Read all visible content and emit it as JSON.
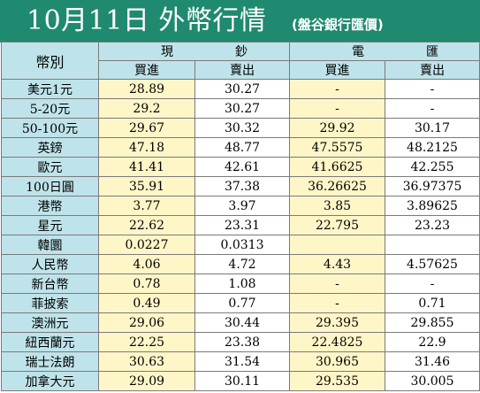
{
  "header": {
    "title": "10月11日 外幣行情",
    "source": "(盤谷銀行匯價)"
  },
  "table": {
    "corner_label": "幣別",
    "groups": [
      "現鈔",
      "電匯"
    ],
    "subheaders": [
      "買進",
      "賣出",
      "買進",
      "賣出"
    ],
    "rows": [
      {
        "currency": "美元1元",
        "cash_buy": "28.89",
        "cash_sell": "30.27",
        "tt_buy": "-",
        "tt_sell": "-"
      },
      {
        "currency": "5-20元",
        "cash_buy": "29.2",
        "cash_sell": "30.27",
        "tt_buy": "-",
        "tt_sell": "-"
      },
      {
        "currency": "50-100元",
        "cash_buy": "29.67",
        "cash_sell": "30.32",
        "tt_buy": "29.92",
        "tt_sell": "30.17"
      },
      {
        "currency": "英鎊",
        "cash_buy": "47.18",
        "cash_sell": "48.77",
        "tt_buy": "47.5575",
        "tt_sell": "48.2125"
      },
      {
        "currency": "歐元",
        "cash_buy": "41.41",
        "cash_sell": "42.61",
        "tt_buy": "41.6625",
        "tt_sell": "42.255"
      },
      {
        "currency": "100日圓",
        "cash_buy": "35.91",
        "cash_sell": "37.38",
        "tt_buy": "36.26625",
        "tt_sell": "36.97375"
      },
      {
        "currency": "港幣",
        "cash_buy": "3.77",
        "cash_sell": "3.97",
        "tt_buy": "3.85",
        "tt_sell": "3.89625"
      },
      {
        "currency": "星元",
        "cash_buy": "22.62",
        "cash_sell": "23.31",
        "tt_buy": "22.795",
        "tt_sell": "23.23"
      },
      {
        "currency": "韓圜",
        "cash_buy": "0.0227",
        "cash_sell": "0.0313",
        "tt_buy": "",
        "tt_sell": ""
      },
      {
        "currency": "人民幣",
        "cash_buy": "4.06",
        "cash_sell": "4.72",
        "tt_buy": "4.43",
        "tt_sell": "4.57625"
      },
      {
        "currency": "新台幣",
        "cash_buy": "0.78",
        "cash_sell": "1.08",
        "tt_buy": "-",
        "tt_sell": "-"
      },
      {
        "currency": "菲披索",
        "cash_buy": "0.49",
        "cash_sell": "0.77",
        "tt_buy": "-",
        "tt_sell": "0.71"
      },
      {
        "currency": "澳洲元",
        "cash_buy": "29.06",
        "cash_sell": "30.44",
        "tt_buy": "29.395",
        "tt_sell": "29.855"
      },
      {
        "currency": "紐西蘭元",
        "cash_buy": "22.25",
        "cash_sell": "23.38",
        "tt_buy": "22.4825",
        "tt_sell": "22.9"
      },
      {
        "currency": "瑞士法朗",
        "cash_buy": "30.63",
        "cash_sell": "31.54",
        "tt_buy": "30.965",
        "tt_sell": "31.46"
      },
      {
        "currency": "加拿大元",
        "cash_buy": "29.09",
        "cash_sell": "30.11",
        "tt_buy": "29.535",
        "tt_sell": "30.005"
      }
    ]
  }
}
